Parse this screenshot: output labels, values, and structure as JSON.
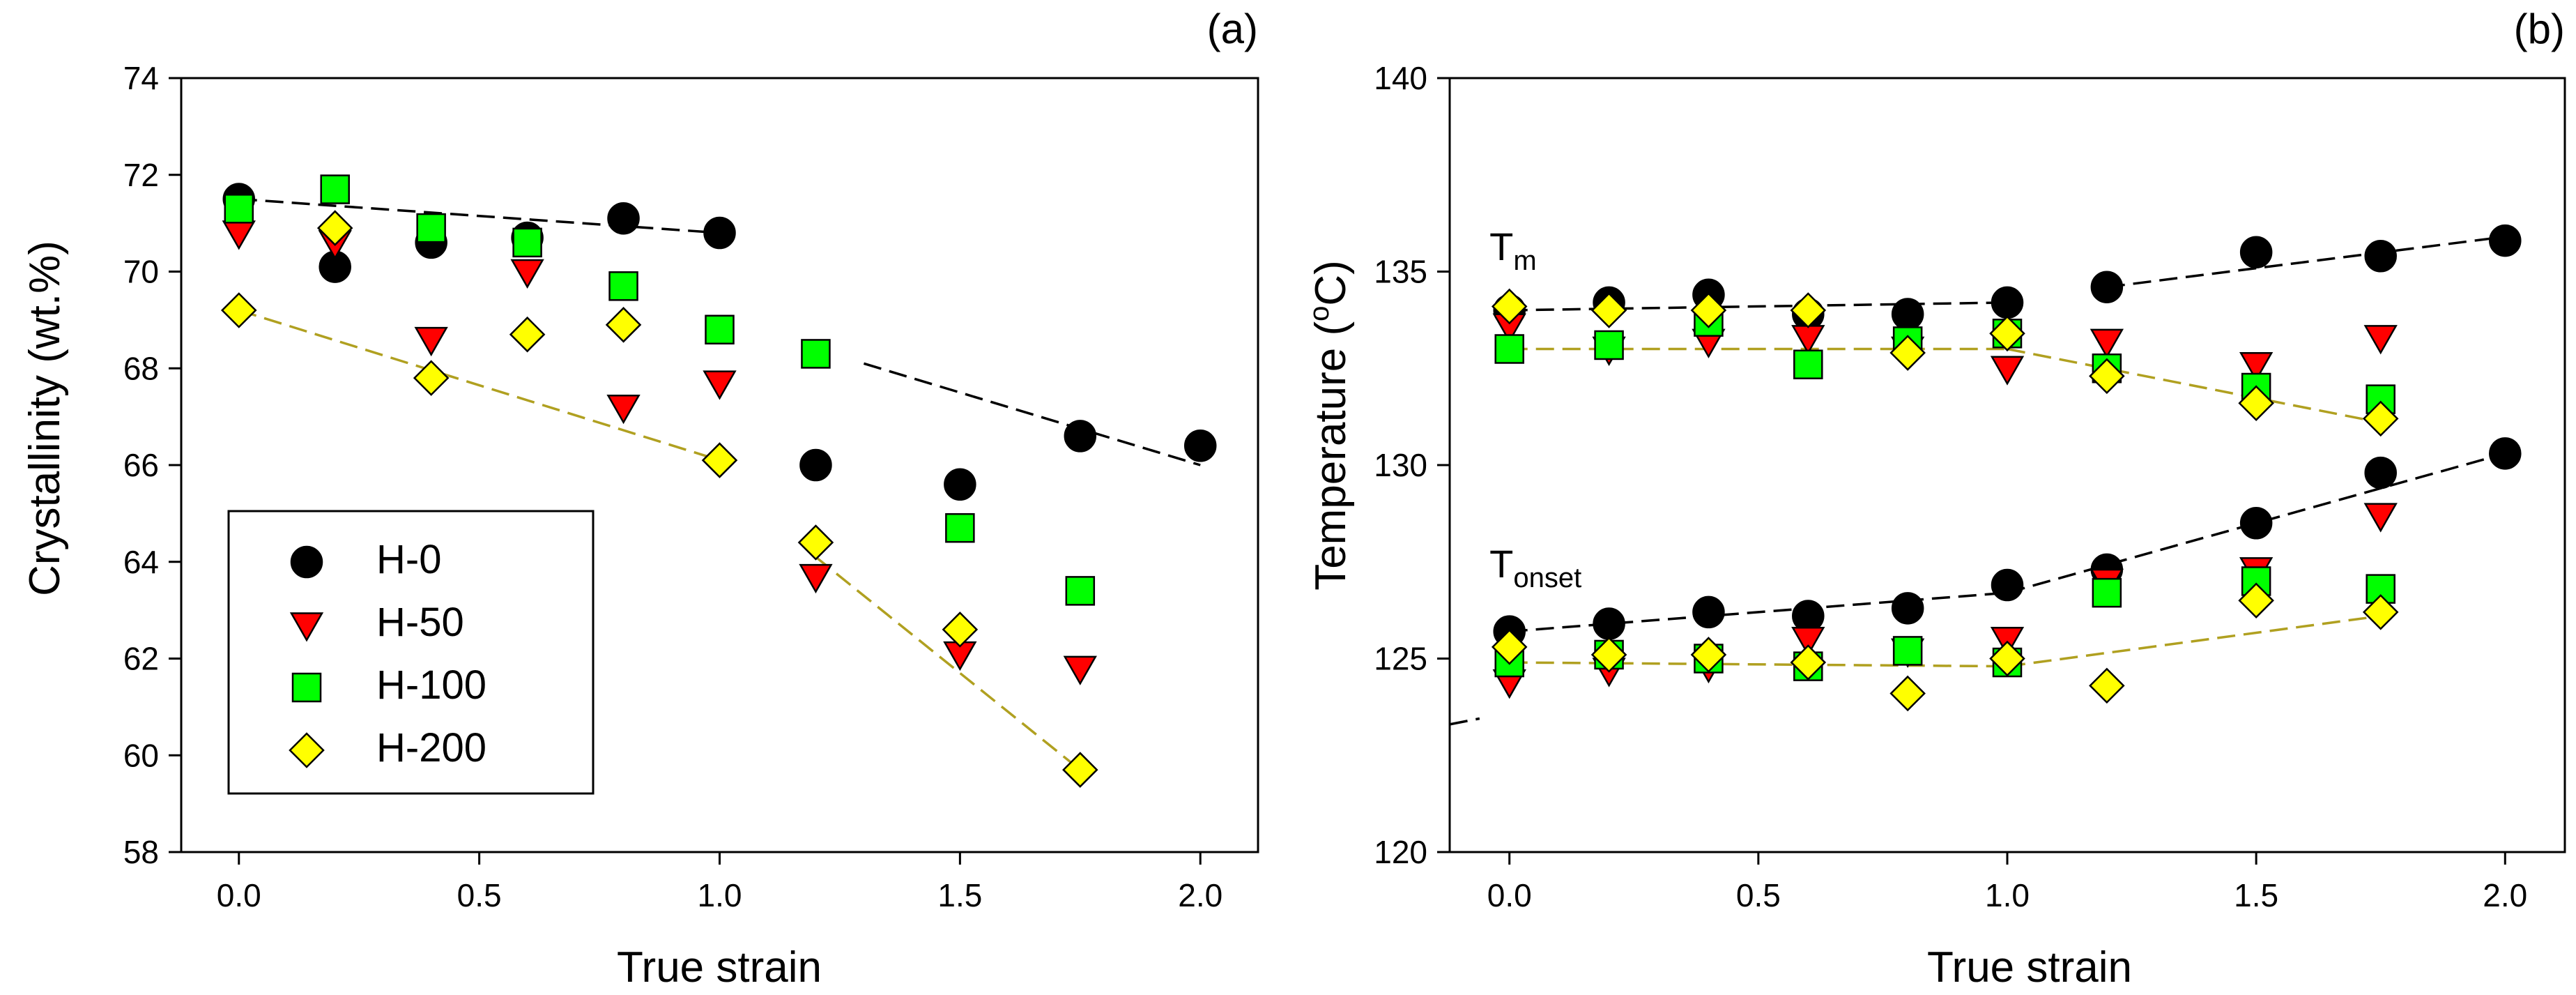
{
  "chart_data": [
    {
      "type": "scatter",
      "panel_label": "(a)",
      "xlabel": "True strain",
      "ylabel": "Crystallinity (wt.%)",
      "xlim": [
        -0.12,
        2.12
      ],
      "ylim": [
        58,
        74
      ],
      "xticks": [
        0.0,
        0.5,
        1.0,
        1.5,
        2.0
      ],
      "xtick_labels": [
        "0.0",
        "0.5",
        "1.0",
        "1.5",
        "2.0"
      ],
      "yticks": [
        58,
        60,
        62,
        64,
        66,
        68,
        70,
        72,
        74
      ],
      "ytick_labels": [
        "58",
        "60",
        "62",
        "64",
        "66",
        "68",
        "70",
        "72",
        "74"
      ],
      "grid": false,
      "legend_position": "bottom-left",
      "series": [
        {
          "name": "H-0",
          "marker": "circle",
          "color": "#000000",
          "x": [
            0.0,
            0.2,
            0.4,
            0.6,
            0.8,
            1.0,
            1.2,
            1.5,
            1.75,
            2.0
          ],
          "y": [
            71.5,
            70.1,
            70.6,
            70.7,
            71.1,
            70.8,
            66.0,
            65.6,
            66.6,
            66.4
          ]
        },
        {
          "name": "H-50",
          "marker": "triangle-down",
          "color": "#ff0000",
          "x": [
            0.0,
            0.2,
            0.4,
            0.6,
            0.8,
            1.0,
            1.2,
            1.5,
            1.75
          ],
          "y": [
            70.8,
            70.6,
            68.6,
            70.0,
            67.2,
            67.7,
            63.7,
            62.1,
            61.8
          ]
        },
        {
          "name": "H-100",
          "marker": "square",
          "color": "#00ff00",
          "x": [
            0.0,
            0.2,
            0.4,
            0.6,
            0.8,
            1.0,
            1.2,
            1.5,
            1.75
          ],
          "y": [
            71.3,
            71.7,
            70.9,
            70.6,
            69.7,
            68.8,
            68.3,
            64.7,
            63.4
          ]
        },
        {
          "name": "H-200",
          "marker": "diamond",
          "color": "#ffff00",
          "x": [
            0.0,
            0.2,
            0.4,
            0.6,
            0.8,
            1.0,
            1.2,
            1.5,
            1.75
          ],
          "y": [
            69.2,
            70.9,
            67.8,
            68.7,
            68.9,
            66.1,
            64.4,
            62.6,
            59.7
          ]
        }
      ],
      "trend_lines": [
        {
          "series": "H-0",
          "color": "#000000",
          "x": [
            0.0,
            1.0
          ],
          "y": [
            71.5,
            70.8
          ]
        },
        {
          "series": "H-0",
          "color": "#000000",
          "x": [
            1.3,
            2.0
          ],
          "y": [
            68.1,
            66.0
          ]
        },
        {
          "series": "H-200",
          "color": "#b0a020",
          "x": [
            0.0,
            1.0
          ],
          "y": [
            69.2,
            66.1
          ]
        },
        {
          "series": "H-200",
          "color": "#b0a020",
          "x": [
            1.2,
            1.75
          ],
          "y": [
            64.1,
            59.7
          ]
        }
      ]
    },
    {
      "type": "scatter",
      "panel_label": "(b)",
      "xlabel": "True strain",
      "ylabel_prefix": "Temperature (",
      "ylabel_sup": "o",
      "ylabel_suffix": "C)",
      "xlim": [
        -0.12,
        2.12
      ],
      "ylim": [
        120,
        140
      ],
      "xticks": [
        0.0,
        0.5,
        1.0,
        1.5,
        2.0
      ],
      "xtick_labels": [
        "0.0",
        "0.5",
        "1.0",
        "1.5",
        "2.0"
      ],
      "yticks": [
        120,
        125,
        130,
        135,
        140
      ],
      "ytick_labels": [
        "120",
        "125",
        "130",
        "135",
        "140"
      ],
      "grid": false,
      "annotations": [
        {
          "main": "T",
          "sub": "m",
          "x": -0.04,
          "y": 135.3
        },
        {
          "main": "T",
          "sub": "onset",
          "x": -0.04,
          "y": 127.1
        }
      ],
      "series": [
        {
          "name": "H-0 Tm",
          "marker": "circle",
          "color": "#000000",
          "x": [
            0.0,
            0.2,
            0.4,
            0.6,
            0.8,
            1.0,
            1.2,
            1.5,
            1.75,
            2.0
          ],
          "y": [
            134.0,
            134.2,
            134.4,
            133.9,
            133.9,
            134.2,
            134.6,
            135.5,
            135.4,
            135.8
          ]
        },
        {
          "name": "H-50 Tm",
          "marker": "triangle-down",
          "color": "#ff0000",
          "x": [
            0.0,
            0.2,
            0.4,
            0.6,
            0.8,
            1.0,
            1.2,
            1.5,
            1.75
          ],
          "y": [
            133.6,
            133.0,
            133.2,
            133.3,
            133.0,
            132.5,
            133.2,
            132.6,
            133.3
          ]
        },
        {
          "name": "H-100 Tm",
          "marker": "square",
          "color": "#00ff00",
          "x": [
            0.0,
            0.2,
            0.4,
            0.6,
            0.8,
            1.0,
            1.2,
            1.5,
            1.75
          ],
          "y": [
            133.0,
            133.1,
            133.7,
            132.6,
            133.2,
            133.4,
            132.5,
            132.0,
            131.7
          ]
        },
        {
          "name": "H-200 Tm",
          "marker": "diamond",
          "color": "#ffff00",
          "x": [
            0.0,
            0.2,
            0.4,
            0.6,
            0.8,
            1.0,
            1.2,
            1.5,
            1.75
          ],
          "y": [
            134.1,
            134.0,
            134.0,
            134.0,
            132.9,
            133.4,
            132.3,
            131.6,
            131.2
          ]
        },
        {
          "name": "H-0 Tonset",
          "marker": "circle",
          "color": "#000000",
          "x": [
            0.0,
            0.2,
            0.4,
            0.6,
            0.8,
            1.0,
            1.2,
            1.5,
            1.75,
            2.0
          ],
          "y": [
            125.7,
            125.9,
            126.2,
            126.1,
            126.3,
            126.9,
            127.3,
            128.5,
            129.8,
            130.3
          ]
        },
        {
          "name": "H-50 Tonset",
          "marker": "triangle-down",
          "color": "#ff0000",
          "x": [
            0.0,
            0.2,
            0.4,
            0.6,
            0.8,
            1.0,
            1.2,
            1.5,
            1.75
          ],
          "y": [
            124.4,
            124.7,
            124.8,
            125.5,
            125.2,
            125.5,
            127.0,
            127.3,
            128.7
          ]
        },
        {
          "name": "H-100 Tonset",
          "marker": "square",
          "color": "#00ff00",
          "x": [
            0.0,
            0.2,
            0.4,
            0.6,
            0.8,
            1.0,
            1.2,
            1.5,
            1.75
          ],
          "y": [
            124.9,
            125.1,
            125.0,
            124.8,
            125.2,
            124.9,
            126.7,
            127.0,
            126.8
          ]
        },
        {
          "name": "H-200 Tonset",
          "marker": "diamond",
          "color": "#ffff00",
          "x": [
            0.0,
            0.2,
            0.4,
            0.6,
            0.8,
            1.0,
            1.2,
            1.5,
            1.75
          ],
          "y": [
            125.3,
            125.1,
            125.1,
            124.9,
            124.1,
            125.0,
            124.3,
            126.5,
            126.2
          ]
        }
      ],
      "trend_lines": [
        {
          "series": "H-0 Tm",
          "color": "#000000",
          "x": [
            0.0,
            1.0
          ],
          "y": [
            134.0,
            134.2
          ]
        },
        {
          "series": "H-0 Tm",
          "color": "#000000",
          "x": [
            1.2,
            2.0
          ],
          "y": [
            134.6,
            135.9
          ]
        },
        {
          "series": "H-200 Tm",
          "color": "#b0a020",
          "x": [
            0.0,
            1.0
          ],
          "y": [
            133.0,
            133.0
          ]
        },
        {
          "series": "H-200 Tm",
          "color": "#b0a020",
          "x": [
            1.0,
            1.75
          ],
          "y": [
            133.0,
            131.1
          ]
        },
        {
          "series": "H-0 Tonset",
          "color": "#000000",
          "x": [
            0.0,
            1.0
          ],
          "y": [
            125.7,
            126.7
          ]
        },
        {
          "series": "H-0 Tonset",
          "color": "#000000",
          "x": [
            1.0,
            2.0
          ],
          "y": [
            126.7,
            130.3
          ]
        },
        {
          "series": "H-200 Tonset",
          "color": "#b0a020",
          "x": [
            0.0,
            1.0
          ],
          "y": [
            124.9,
            124.8
          ]
        },
        {
          "series": "H-200 Tonset",
          "color": "#b0a020",
          "x": [
            1.0,
            1.75
          ],
          "y": [
            124.8,
            126.1
          ]
        },
        {
          "series": "H-0 Tonset",
          "color": "#000000",
          "x": [
            -0.12,
            -0.06
          ],
          "y": [
            123.3,
            123.45
          ]
        }
      ]
    }
  ]
}
